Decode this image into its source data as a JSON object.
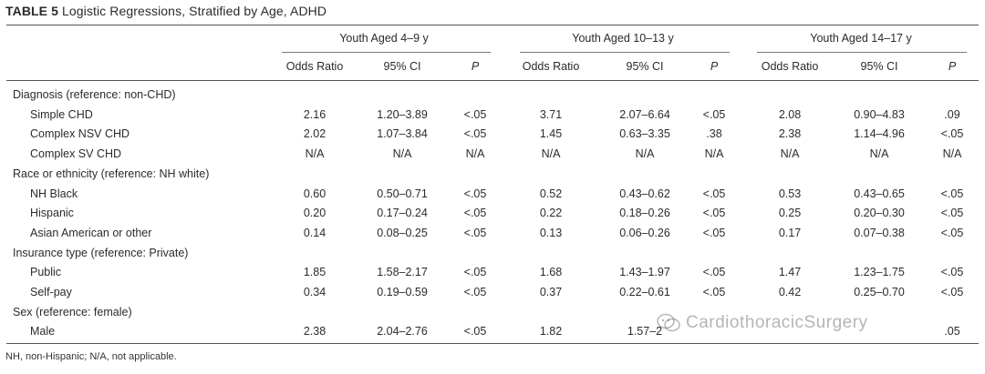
{
  "table": {
    "label": "TABLE 5",
    "title": "Logistic Regressions, Stratified by Age, ADHD",
    "groups": [
      "Youth Aged 4–9 y",
      "Youth Aged 10–13 y",
      "Youth Aged 14–17 y"
    ],
    "columns": [
      "Odds Ratio",
      "95% CI",
      "P",
      "Odds Ratio",
      "95% CI",
      "P",
      "Odds Ratio",
      "95% CI",
      "P"
    ],
    "rows": [
      {
        "label": "Diagnosis (reference: non-CHD)",
        "section": true
      },
      {
        "label": "Simple CHD",
        "cells": [
          "2.16",
          "1.20–3.89",
          "<.05",
          "3.71",
          "2.07–6.64",
          "<.05",
          "2.08",
          "0.90–4.83",
          ".09"
        ]
      },
      {
        "label": "Complex NSV CHD",
        "cells": [
          "2.02",
          "1.07–3.84",
          "<.05",
          "1.45",
          "0.63–3.35",
          ".38",
          "2.38",
          "1.14–4.96",
          "<.05"
        ]
      },
      {
        "label": "Complex SV CHD",
        "cells": [
          "N/A",
          "N/A",
          "N/A",
          "N/A",
          "N/A",
          "N/A",
          "N/A",
          "N/A",
          "N/A"
        ]
      },
      {
        "label": "Race or ethnicity (reference: NH white)",
        "section": true
      },
      {
        "label": "NH Black",
        "cells": [
          "0.60",
          "0.50–0.71",
          "<.05",
          "0.52",
          "0.43–0.62",
          "<.05",
          "0.53",
          "0.43–0.65",
          "<.05"
        ]
      },
      {
        "label": "Hispanic",
        "cells": [
          "0.20",
          "0.17–0.24",
          "<.05",
          "0.22",
          "0.18–0.26",
          "<.05",
          "0.25",
          "0.20–0.30",
          "<.05"
        ]
      },
      {
        "label": "Asian American or other",
        "cells": [
          "0.14",
          "0.08–0.25",
          "<.05",
          "0.13",
          "0.06–0.26",
          "<.05",
          "0.17",
          "0.07–0.38",
          "<.05"
        ]
      },
      {
        "label": "Insurance type (reference: Private)",
        "section": true
      },
      {
        "label": "Public",
        "cells": [
          "1.85",
          "1.58–2.17",
          "<.05",
          "1.68",
          "1.43–1.97",
          "<.05",
          "1.47",
          "1.23–1.75",
          "<.05"
        ]
      },
      {
        "label": "Self-pay",
        "cells": [
          "0.34",
          "0.19–0.59",
          "<.05",
          "0.37",
          "0.22–0.61",
          "<.05",
          "0.42",
          "0.25–0.70",
          "<.05"
        ]
      },
      {
        "label": "Sex (reference: female)",
        "section": true
      },
      {
        "label": "Male",
        "cells": [
          "2.38",
          "2.04–2.76",
          "<.05",
          "1.82",
          "1.57–2",
          "",
          "",
          "",
          ".05"
        ]
      }
    ],
    "footnote": "NH, non-Hispanic; N/A, not applicable."
  },
  "watermark": {
    "text": "CardiothoracicSurgery",
    "icon": "wechat-icon"
  }
}
